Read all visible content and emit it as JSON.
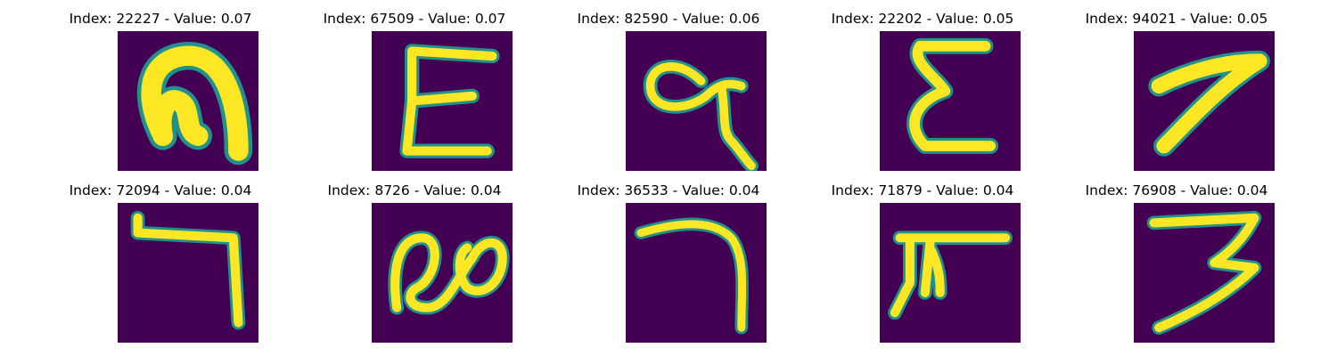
{
  "figure": {
    "colors": {
      "background": "#440154",
      "stroke_core": "#fde725",
      "stroke_edge": "#21918c"
    },
    "cells": [
      {
        "title": "Index: 22227 - Value: 0.07"
      },
      {
        "title": "Index: 67509 - Value: 0.07"
      },
      {
        "title": "Index: 82590 - Value: 0.06"
      },
      {
        "title": "Index: 22202 - Value: 0.05"
      },
      {
        "title": "Index: 94021 - Value: 0.05"
      },
      {
        "title": "Index: 72094 - Value: 0.04"
      },
      {
        "title": "Index: 8726 - Value: 0.04"
      },
      {
        "title": "Index: 36533 - Value: 0.04"
      },
      {
        "title": "Index: 71879 - Value: 0.04"
      },
      {
        "title": "Index: 76908 - Value: 0.04"
      }
    ]
  }
}
